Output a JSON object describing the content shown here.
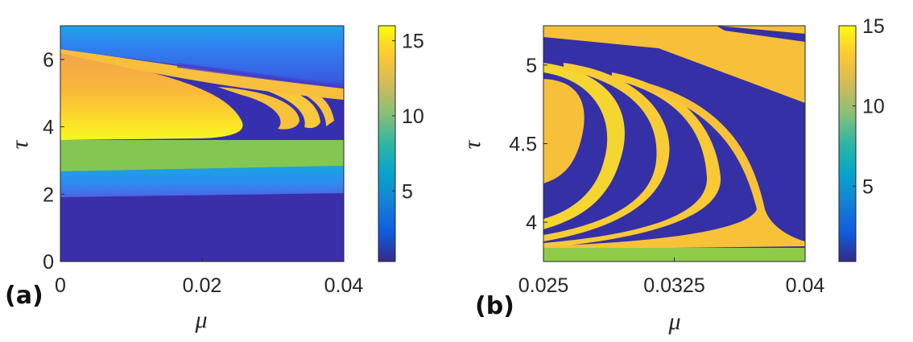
{
  "colormap": {
    "name": "parula",
    "stops": [
      "#352a87",
      "#0f5cdd",
      "#1481d6",
      "#06a4ca",
      "#2eb7a4",
      "#87bf77",
      "#d1bb59",
      "#fec832",
      "#f9fb0e"
    ]
  },
  "chart_data": [
    {
      "type": "heatmap",
      "panel_label": "(a)",
      "xlabel": "μ",
      "ylabel": "τ",
      "xlim": [
        0,
        0.04
      ],
      "ylim": [
        0,
        7
      ],
      "xticks": [
        0,
        0.02,
        0.04
      ],
      "xtick_labels": [
        "0",
        "0.02",
        "0.04"
      ],
      "yticks": [
        0,
        2,
        4,
        6
      ],
      "ytick_labels": [
        "0",
        "2",
        "4",
        "6"
      ],
      "colorbar": {
        "range": [
          0.3,
          16
        ],
        "ticks": [
          5,
          10,
          15
        ],
        "tick_labels": [
          "5",
          "10",
          "15"
        ]
      },
      "regions": [
        {
          "description": "lowest band",
          "tau_range": [
            0,
            1.8
          ],
          "value": 0.5
        },
        {
          "description": "blue band",
          "tau_range": [
            1.8,
            2.8
          ],
          "value": 4.5
        },
        {
          "description": "green band (tilted upward with mu)",
          "tau_range": [
            2.7,
            3.6
          ],
          "value": 9.5
        },
        {
          "description": "yellow-orange upper region with fractal tongues",
          "tau_range": [
            3.6,
            6.3
          ],
          "value": 14
        },
        {
          "description": "top band",
          "tau_range": [
            6.3,
            7
          ],
          "value": 3.5
        }
      ]
    },
    {
      "type": "heatmap",
      "panel_label": "(b)",
      "xlabel": "μ",
      "ylabel": "τ",
      "xlim": [
        0.025,
        0.04
      ],
      "ylim": [
        3.75,
        5.25
      ],
      "xticks": [
        0.025,
        0.0325,
        0.04
      ],
      "xtick_labels": [
        "0.025",
        "0.0325",
        "0.04"
      ],
      "yticks": [
        4,
        4.5,
        5
      ],
      "ytick_labels": [
        "4",
        "4.5",
        "5"
      ],
      "colorbar": {
        "range": [
          0.3,
          15
        ],
        "ticks": [
          5,
          10,
          15
        ],
        "tick_labels": [
          "5",
          "10",
          "15"
        ]
      },
      "regions": [
        {
          "description": "green floor band",
          "tau_range": [
            3.75,
            3.82
          ],
          "value": 9.5
        },
        {
          "description": "nested yellow tongues on dark background",
          "tau_range": [
            3.82,
            5.1
          ],
          "value": 14
        },
        {
          "description": "yellow diagonal band at top",
          "tau_range": [
            4.7,
            5.25
          ],
          "value": 14
        }
      ]
    }
  ]
}
